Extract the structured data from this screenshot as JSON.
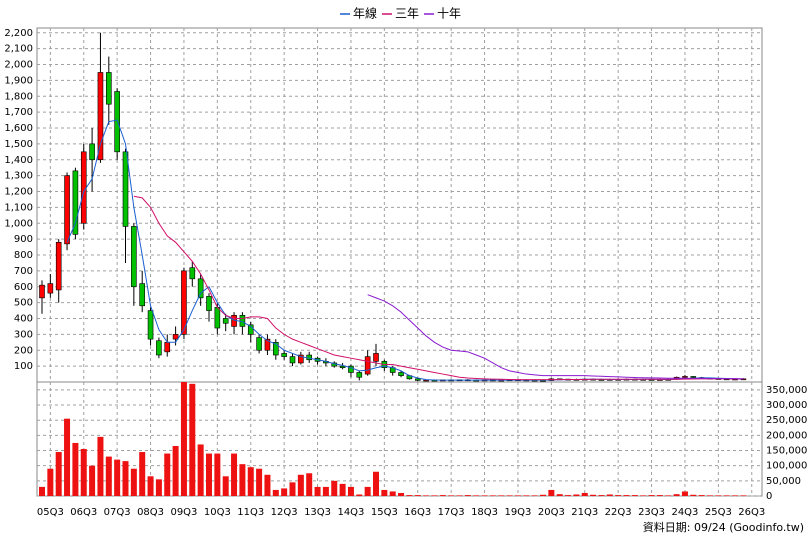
{
  "chart_data": [
    {
      "type": "candlestick",
      "categories": [
        null,
        "05Q3",
        null,
        null,
        null,
        "06Q3",
        null,
        null,
        null,
        "07Q3",
        null,
        null,
        null,
        "08Q3",
        null,
        null,
        null,
        "09Q3",
        null,
        null,
        null,
        "10Q3",
        null,
        null,
        null,
        "11Q3",
        null,
        null,
        null,
        "12Q3",
        null,
        null,
        null,
        "13Q3",
        null,
        null,
        null,
        "14Q3",
        null,
        null,
        null,
        "15Q3",
        null,
        null,
        null,
        "16Q3",
        null,
        null,
        null,
        "17Q3",
        null,
        null,
        null,
        "18Q3",
        null,
        null,
        null,
        "19Q3",
        null,
        null,
        null,
        "20Q3",
        null,
        null,
        null,
        "21Q3",
        null,
        null,
        null,
        "22Q3",
        null,
        null,
        null,
        "23Q3",
        null,
        null,
        null,
        "24Q3",
        null,
        null,
        null,
        "25Q3",
        null,
        null,
        null,
        "26Q3"
      ],
      "open": [
        530,
        560,
        580,
        870,
        1330,
        1000,
        1500,
        1400,
        1950,
        1830,
        1450,
        980,
        620,
        450,
        260,
        190,
        270,
        300,
        720,
        650,
        540,
        470,
        400,
        350,
        420,
        360,
        280,
        200,
        250,
        180,
        160,
        120,
        170,
        150,
        130,
        120,
        100,
        100,
        60,
        50,
        130,
        130,
        90,
        60,
        40,
        20,
        10,
        12,
        11,
        13,
        12,
        14,
        12,
        11,
        13,
        12,
        12,
        14,
        13,
        12,
        10,
        9,
        20,
        18,
        16,
        17,
        18,
        16,
        15,
        17,
        16,
        18,
        17,
        16,
        15,
        16,
        17,
        30,
        35,
        28,
        24,
        22,
        20,
        18,
        19,
        null
      ],
      "high": [
        640,
        680,
        900,
        1320,
        1350,
        1500,
        1600,
        2200,
        2050,
        1850,
        1470,
        1000,
        700,
        470,
        280,
        300,
        350,
        720,
        760,
        680,
        560,
        500,
        430,
        440,
        440,
        380,
        300,
        300,
        270,
        200,
        180,
        190,
        190,
        160,
        150,
        130,
        120,
        110,
        70,
        200,
        240,
        140,
        100,
        70,
        45,
        25,
        16,
        16,
        15,
        17,
        16,
        18,
        16,
        15,
        17,
        16,
        18,
        18,
        17,
        16,
        14,
        24,
        22,
        20,
        21,
        22,
        22,
        20,
        21,
        21,
        22,
        22,
        21,
        20,
        20,
        21,
        34,
        45,
        38,
        32,
        28,
        26,
        24,
        23,
        24,
        null
      ],
      "low": [
        430,
        530,
        500,
        830,
        900,
        960,
        1200,
        1380,
        1620,
        1400,
        750,
        480,
        440,
        230,
        150,
        160,
        230,
        270,
        600,
        480,
        380,
        300,
        320,
        300,
        300,
        250,
        180,
        170,
        140,
        140,
        100,
        110,
        120,
        110,
        100,
        90,
        80,
        30,
        10,
        40,
        100,
        70,
        40,
        30,
        15,
        5,
        7,
        8,
        8,
        9,
        9,
        9,
        8,
        8,
        9,
        9,
        9,
        10,
        9,
        7,
        6,
        6,
        14,
        13,
        13,
        14,
        13,
        12,
        12,
        13,
        13,
        14,
        13,
        12,
        12,
        13,
        14,
        26,
        24,
        20,
        18,
        16,
        15,
        15,
        16,
        null
      ],
      "close": [
        610,
        620,
        880,
        1300,
        930,
        1450,
        1400,
        1950,
        1750,
        1450,
        980,
        600,
        480,
        270,
        170,
        250,
        300,
        700,
        650,
        530,
        450,
        340,
        370,
        420,
        350,
        300,
        200,
        270,
        170,
        160,
        120,
        170,
        140,
        130,
        120,
        100,
        90,
        60,
        30,
        160,
        180,
        90,
        60,
        40,
        20,
        10,
        12,
        11,
        13,
        12,
        14,
        12,
        11,
        13,
        12,
        12,
        14,
        13,
        12,
        10,
        9,
        20,
        18,
        16,
        17,
        18,
        16,
        15,
        17,
        16,
        18,
        17,
        16,
        15,
        16,
        17,
        30,
        35,
        28,
        24,
        22,
        20,
        18,
        19,
        20,
        null
      ],
      "up_color": "#ff0000",
      "down_color": "#00c000",
      "series": [
        {
          "name": "年線",
          "color": "#1a5fd0",
          "values": [
            null,
            null,
            null,
            880,
            1000,
            1200,
            1280,
            1500,
            1640,
            1650,
            1500,
            1100,
            800,
            480,
            330,
            250,
            250,
            330,
            450,
            560,
            600,
            500,
            420,
            390,
            380,
            350,
            300,
            260,
            240,
            200,
            180,
            160,
            150,
            140,
            130,
            115,
            105,
            90,
            70,
            75,
            90,
            100,
            90,
            70,
            40,
            25,
            15,
            13,
            12,
            12,
            12,
            12,
            12,
            12,
            12,
            12,
            12,
            12,
            12,
            12,
            12,
            13,
            14,
            15,
            16,
            17,
            17,
            17,
            16,
            16,
            16,
            16,
            17,
            17,
            16,
            16,
            17,
            20,
            24,
            26,
            26,
            24,
            22,
            20,
            19,
            null
          ]
        },
        {
          "name": "三年",
          "color": "#d0106a",
          "values": [
            null,
            null,
            null,
            null,
            null,
            null,
            null,
            null,
            null,
            null,
            null,
            1170,
            1160,
            1100,
            1000,
            920,
            880,
            820,
            760,
            680,
            580,
            470,
            420,
            400,
            400,
            410,
            410,
            400,
            340,
            300,
            270,
            250,
            230,
            210,
            190,
            170,
            160,
            150,
            140,
            130,
            120,
            110,
            110,
            100,
            90,
            80,
            70,
            60,
            50,
            40,
            30,
            25,
            22,
            20,
            18,
            17,
            16,
            15,
            15,
            15,
            15,
            15,
            15,
            16,
            16,
            16,
            17,
            17,
            17,
            17,
            17,
            17,
            17,
            17,
            17,
            17,
            17,
            18,
            19,
            20,
            20,
            20,
            20,
            20,
            20,
            null
          ]
        },
        {
          "name": "十年",
          "color": "#8a1ad0",
          "values": [
            null,
            null,
            null,
            null,
            null,
            null,
            null,
            null,
            null,
            null,
            null,
            null,
            null,
            null,
            null,
            null,
            null,
            null,
            null,
            null,
            null,
            null,
            null,
            null,
            null,
            null,
            null,
            null,
            null,
            null,
            null,
            null,
            null,
            null,
            null,
            null,
            null,
            null,
            null,
            550,
            530,
            510,
            480,
            440,
            390,
            340,
            290,
            250,
            220,
            200,
            195,
            190,
            170,
            150,
            120,
            90,
            70,
            60,
            50,
            45,
            40,
            40,
            40,
            40,
            40,
            40,
            38,
            36,
            34,
            32,
            30,
            28,
            27,
            26,
            25,
            24,
            24,
            24,
            23,
            23,
            22,
            22,
            21,
            21,
            20,
            null
          ]
        }
      ],
      "ylim": [
        0,
        2230
      ],
      "yticks": [
        100,
        200,
        300,
        400,
        500,
        600,
        700,
        800,
        900,
        {
          "value": 1000,
          "label": "1,000"
        },
        {
          "value": 1100,
          "label": "1,100"
        },
        {
          "value": 1200,
          "label": "1,200"
        },
        {
          "value": 1300,
          "label": "1,300"
        },
        {
          "value": 1400,
          "label": "1,400"
        },
        {
          "value": 1500,
          "label": "1,500"
        },
        {
          "value": 1600,
          "label": "1,600"
        },
        {
          "value": 1700,
          "label": "1,700"
        },
        {
          "value": 1800,
          "label": "1,800"
        },
        {
          "value": 1900,
          "label": "1,900"
        },
        {
          "value": 2000,
          "label": "2,000"
        },
        {
          "value": 2100,
          "label": "2,100"
        },
        {
          "value": 2200,
          "label": "2,200"
        }
      ],
      "grid": true,
      "legend": "top"
    },
    {
      "type": "bar",
      "values": [
        30000,
        90000,
        145000,
        255000,
        175000,
        155000,
        100000,
        195000,
        130000,
        120000,
        115000,
        90000,
        145000,
        65000,
        55000,
        140000,
        165000,
        386000,
        370000,
        170000,
        140000,
        140000,
        65000,
        140000,
        105000,
        95000,
        90000,
        70000,
        20000,
        25000,
        45000,
        70000,
        75000,
        30000,
        30000,
        50000,
        40000,
        30000,
        5000,
        30000,
        80000,
        20000,
        15000,
        10000,
        3000,
        3000,
        2000,
        2000,
        3000,
        2000,
        2000,
        3000,
        2000,
        2000,
        2000,
        2000,
        2000,
        2000,
        2000,
        2000,
        4000,
        20000,
        6000,
        3000,
        5000,
        10000,
        4000,
        3000,
        5000,
        3000,
        3000,
        3000,
        2000,
        3000,
        3000,
        2000,
        6000,
        15000,
        4000,
        3000,
        2000,
        2000,
        2000,
        2000,
        2000,
        null
      ],
      "color": "#ee1111",
      "ylim": [
        0,
        376000
      ],
      "yticks": [
        0,
        {
          "value": 50000,
          "label": "50,000"
        },
        {
          "value": 100000,
          "label": "100,000"
        },
        {
          "value": 150000,
          "label": "150,000"
        },
        {
          "value": 200000,
          "label": "200,000"
        },
        {
          "value": 250000,
          "label": "250,000"
        },
        {
          "value": 300000,
          "label": "300,000"
        },
        {
          "value": 350000,
          "label": "350,000"
        }
      ],
      "grid": true
    }
  ],
  "source": "資料日期: 09/24 (Goodinfo.tw)"
}
